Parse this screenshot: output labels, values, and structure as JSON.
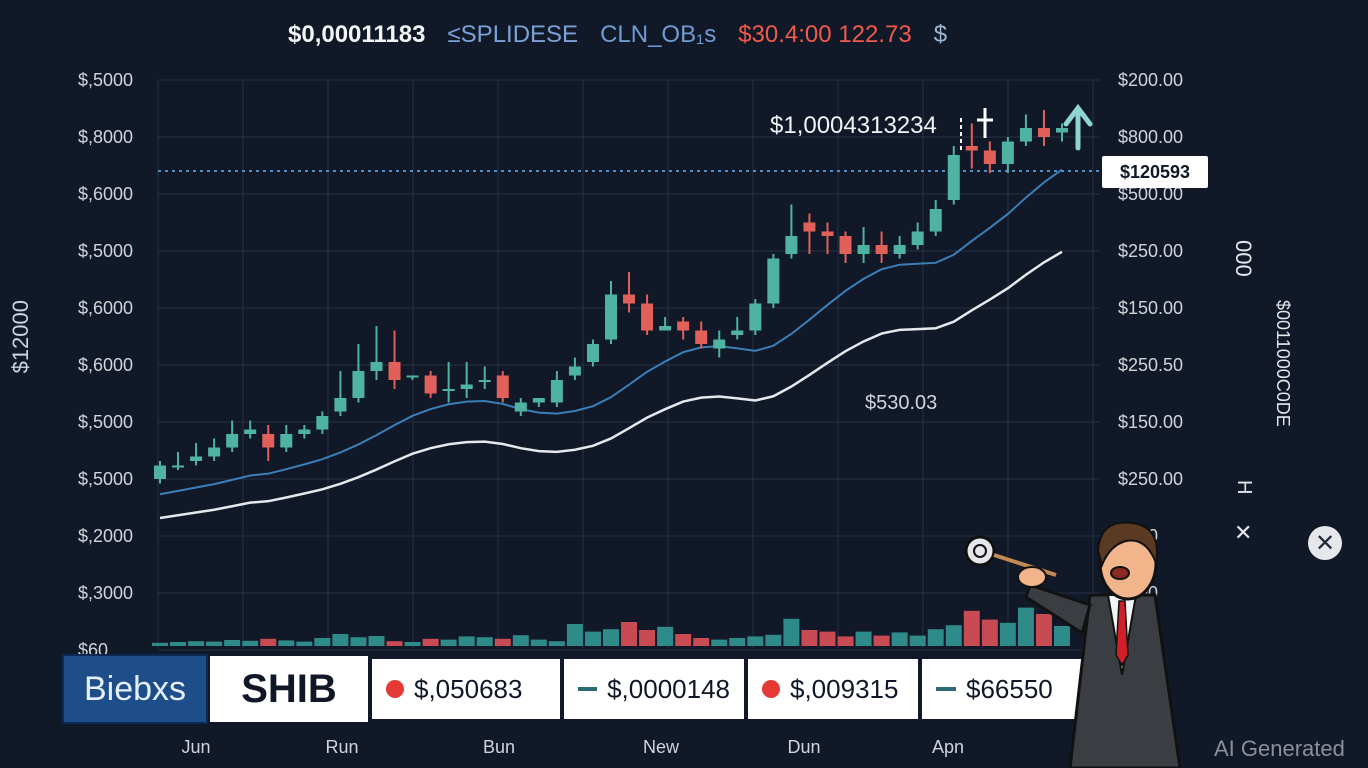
{
  "header": {
    "price": "$0,00011183",
    "symbol_a": "≤SPLIDESE",
    "symbol_b": "CLN_OB₁s",
    "change": "$30.4:00 122.73",
    "currency": "$"
  },
  "left_axis_labels": [
    "$,5000",
    "$,8000",
    "$,6000",
    "$,5000",
    "$,6000",
    "$,6000",
    "$,5000",
    "$,5000",
    "$,2000",
    "$,3000",
    "$60"
  ],
  "right_axis_labels": [
    "$200.00",
    "$800.00",
    "$500.00",
    "$250.00",
    "$150.00",
    "$250.50",
    "$150.00",
    "$250.00",
    "$..00",
    "$..00"
  ],
  "x_axis_labels": [
    "Jun",
    "Run",
    "Bun",
    "New",
    "Dun",
    "Apn"
  ],
  "side_labels": {
    "left_vertical": "$12000",
    "right_vertical_1": "000",
    "right_vertical_2": "$0011000C0DE",
    "right_vertical_3": "H",
    "right_x": "✕"
  },
  "annotations": {
    "peak_callout": "$1,0004313234",
    "current_price_tag": "$120593",
    "ma_label": "$530.03"
  },
  "bottom_bar": {
    "brand": "Biebxs",
    "symbol": "SHIB",
    "quotes": [
      {
        "marker": "dot",
        "value": "$,050683"
      },
      {
        "marker": "dash",
        "value": "$,0000148"
      },
      {
        "marker": "dot",
        "value": "$,009315"
      },
      {
        "marker": "dash",
        "value": "$66550"
      }
    ]
  },
  "watermark": "AI Generated",
  "colors": {
    "background": "#111827",
    "up": "#4fb3a3",
    "down": "#e2605a",
    "ma_fast": "#3b7fb8",
    "ma_slow": "#e6e8ec",
    "ref_line": "#4a90c0",
    "volume_up": "#2f8a8a",
    "volume_down": "#c84a52"
  },
  "chart_data": {
    "type": "candlestick",
    "candles": [
      {
        "o": 0.18,
        "c": 0.21,
        "h": 0.22,
        "l": 0.17
      },
      {
        "o": 0.21,
        "c": 0.21,
        "h": 0.24,
        "l": 0.2
      },
      {
        "o": 0.22,
        "c": 0.23,
        "h": 0.26,
        "l": 0.21
      },
      {
        "o": 0.23,
        "c": 0.25,
        "h": 0.27,
        "l": 0.22
      },
      {
        "o": 0.25,
        "c": 0.28,
        "h": 0.31,
        "l": 0.24
      },
      {
        "o": 0.28,
        "c": 0.29,
        "h": 0.31,
        "l": 0.27
      },
      {
        "o": 0.28,
        "c": 0.25,
        "h": 0.3,
        "l": 0.22
      },
      {
        "o": 0.25,
        "c": 0.28,
        "h": 0.3,
        "l": 0.24
      },
      {
        "o": 0.28,
        "c": 0.29,
        "h": 0.3,
        "l": 0.27
      },
      {
        "o": 0.29,
        "c": 0.32,
        "h": 0.33,
        "l": 0.28
      },
      {
        "o": 0.33,
        "c": 0.36,
        "h": 0.42,
        "l": 0.32
      },
      {
        "o": 0.36,
        "c": 0.42,
        "h": 0.48,
        "l": 0.35
      },
      {
        "o": 0.42,
        "c": 0.44,
        "h": 0.52,
        "l": 0.4
      },
      {
        "o": 0.44,
        "c": 0.4,
        "h": 0.51,
        "l": 0.38
      },
      {
        "o": 0.41,
        "c": 0.41,
        "h": 0.41,
        "l": 0.4
      },
      {
        "o": 0.41,
        "c": 0.37,
        "h": 0.42,
        "l": 0.36
      },
      {
        "o": 0.38,
        "c": 0.38,
        "h": 0.44,
        "l": 0.35
      },
      {
        "o": 0.38,
        "c": 0.39,
        "h": 0.44,
        "l": 0.36
      },
      {
        "o": 0.4,
        "c": 0.4,
        "h": 0.43,
        "l": 0.38
      },
      {
        "o": 0.41,
        "c": 0.36,
        "h": 0.42,
        "l": 0.35
      },
      {
        "o": 0.33,
        "c": 0.35,
        "h": 0.36,
        "l": 0.32
      },
      {
        "o": 0.35,
        "c": 0.36,
        "h": 0.36,
        "l": 0.34
      },
      {
        "o": 0.35,
        "c": 0.4,
        "h": 0.42,
        "l": 0.34
      },
      {
        "o": 0.41,
        "c": 0.43,
        "h": 0.45,
        "l": 0.4
      },
      {
        "o": 0.44,
        "c": 0.48,
        "h": 0.49,
        "l": 0.43
      },
      {
        "o": 0.49,
        "c": 0.59,
        "h": 0.62,
        "l": 0.48
      },
      {
        "o": 0.59,
        "c": 0.57,
        "h": 0.64,
        "l": 0.55
      },
      {
        "o": 0.57,
        "c": 0.51,
        "h": 0.59,
        "l": 0.5
      },
      {
        "o": 0.51,
        "c": 0.52,
        "h": 0.54,
        "l": 0.51
      },
      {
        "o": 0.53,
        "c": 0.51,
        "h": 0.54,
        "l": 0.49
      },
      {
        "o": 0.51,
        "c": 0.48,
        "h": 0.53,
        "l": 0.47
      },
      {
        "o": 0.47,
        "c": 0.49,
        "h": 0.51,
        "l": 0.45
      },
      {
        "o": 0.5,
        "c": 0.51,
        "h": 0.54,
        "l": 0.49
      },
      {
        "o": 0.51,
        "c": 0.57,
        "h": 0.58,
        "l": 0.5
      },
      {
        "o": 0.57,
        "c": 0.67,
        "h": 0.68,
        "l": 0.56
      },
      {
        "o": 0.68,
        "c": 0.72,
        "h": 0.79,
        "l": 0.67
      },
      {
        "o": 0.75,
        "c": 0.73,
        "h": 0.77,
        "l": 0.68
      },
      {
        "o": 0.73,
        "c": 0.72,
        "h": 0.75,
        "l": 0.68
      },
      {
        "o": 0.72,
        "c": 0.68,
        "h": 0.73,
        "l": 0.66
      },
      {
        "o": 0.68,
        "c": 0.7,
        "h": 0.74,
        "l": 0.66
      },
      {
        "o": 0.7,
        "c": 0.68,
        "h": 0.73,
        "l": 0.66
      },
      {
        "o": 0.68,
        "c": 0.7,
        "h": 0.72,
        "l": 0.67
      },
      {
        "o": 0.7,
        "c": 0.73,
        "h": 0.75,
        "l": 0.69
      },
      {
        "o": 0.73,
        "c": 0.78,
        "h": 0.8,
        "l": 0.72
      },
      {
        "o": 0.8,
        "c": 0.9,
        "h": 0.92,
        "l": 0.79
      },
      {
        "o": 0.92,
        "c": 0.91,
        "h": 0.97,
        "l": 0.87
      },
      {
        "o": 0.91,
        "c": 0.88,
        "h": 0.93,
        "l": 0.86
      },
      {
        "o": 0.88,
        "c": 0.93,
        "h": 0.94,
        "l": 0.86
      },
      {
        "o": 0.93,
        "c": 0.96,
        "h": 0.99,
        "l": 0.92
      },
      {
        "o": 0.96,
        "c": 0.94,
        "h": 1.0,
        "l": 0.92
      },
      {
        "o": 0.95,
        "c": 0.96,
        "h": 0.97,
        "l": 0.93
      }
    ],
    "volume": [
      0.08,
      0.1,
      0.12,
      0.11,
      0.15,
      0.13,
      0.18,
      0.14,
      0.11,
      0.2,
      0.3,
      0.22,
      0.25,
      0.12,
      0.1,
      0.18,
      0.16,
      0.24,
      0.22,
      0.18,
      0.27,
      0.16,
      0.12,
      0.55,
      0.36,
      0.42,
      0.6,
      0.4,
      0.48,
      0.3,
      0.2,
      0.16,
      0.2,
      0.24,
      0.28,
      0.68,
      0.4,
      0.36,
      0.24,
      0.36,
      0.26,
      0.34,
      0.26,
      0.42,
      0.52,
      0.88,
      0.66,
      0.58,
      0.96,
      0.8,
      0.5
    ]
  }
}
